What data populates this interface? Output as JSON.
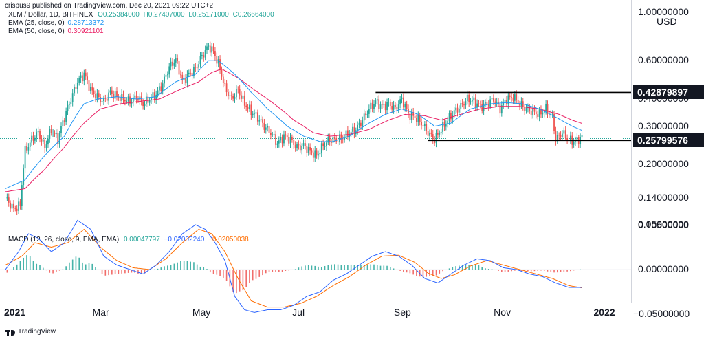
{
  "header": {
    "publisher": "crispus9 published on TradingView.com, Dec 20, 2021 09:22 UTC+2"
  },
  "legend": {
    "symbol": "XLM / Dollar, 1D, BITFINEX",
    "ohlc": {
      "o": "O0.25384000",
      "h": "H0.27407000",
      "l": "L0.25171000",
      "c": "C0.26664000"
    },
    "ema25": {
      "label": "EMA (25, close, 0)",
      "value": "0.28713372",
      "color": "#2196f3"
    },
    "ema50": {
      "label": "EMA (50, close, 0)",
      "value": "0.30921101",
      "color": "#e91e63"
    }
  },
  "macd_legend": {
    "label": "MACD (12, 26, close, 9, EMA, EMA)",
    "hist": "0.00047797",
    "macd": "−0.02002240",
    "signal": "−0.02050038"
  },
  "currency": "USD",
  "price_tags": [
    {
      "label": "0.42879897",
      "value": 0.42879897
    },
    {
      "label": "0.25799576",
      "value": 0.25799576
    }
  ],
  "footer": {
    "brand": "TradingView"
  },
  "colors": {
    "up": "#26a69a",
    "down": "#ef5350",
    "text": "#131722",
    "ema25": "#2196f3",
    "ema50": "#e91e63",
    "macd": "#2962ff",
    "signal": "#ff6d00"
  },
  "chart_data": {
    "type": "candlestick",
    "symbol": "XLM / Dollar",
    "interval": "1D",
    "log_scale": true,
    "grid": false,
    "x_ticks": [
      {
        "label": "2021",
        "t": 0
      },
      {
        "label": "Mar",
        "t": 59
      },
      {
        "label": "May",
        "t": 120
      },
      {
        "label": "Jul",
        "t": 181
      },
      {
        "label": "Sep",
        "t": 243
      },
      {
        "label": "Nov",
        "t": 304
      },
      {
        "label": "2022",
        "t": 365
      }
    ],
    "y_ticks": [
      {
        "label": "1.00000000",
        "value": 1.0
      },
      {
        "label": "0.60000000",
        "value": 0.6
      },
      {
        "label": "0.40000000",
        "value": 0.4
      },
      {
        "label": "0.30000000",
        "value": 0.3
      },
      {
        "label": "0.20000000",
        "value": 0.2
      },
      {
        "label": "0.14000000",
        "value": 0.14
      },
      {
        "label": "0.10500000",
        "value": 0.105
      }
    ],
    "macd_y_ticks": [
      {
        "label": "0.05000000",
        "value": 0.05
      },
      {
        "label": "0.00000000",
        "value": 0.0
      },
      {
        "label": "−0.05000000",
        "value": -0.05
      }
    ],
    "resistance": {
      "value": 0.42879897,
      "from": "2021-08-15",
      "to": "2021-12-31"
    },
    "support": {
      "value": 0.25799576,
      "from": "2021-09-16",
      "to": "2021-12-31"
    },
    "price_path": [
      [
        0,
        0.14
      ],
      [
        5,
        0.125
      ],
      [
        9,
        0.13
      ],
      [
        12,
        0.23
      ],
      [
        16,
        0.26
      ],
      [
        20,
        0.28
      ],
      [
        24,
        0.24
      ],
      [
        28,
        0.29
      ],
      [
        32,
        0.26
      ],
      [
        36,
        0.33
      ],
      [
        40,
        0.4
      ],
      [
        44,
        0.48
      ],
      [
        48,
        0.52
      ],
      [
        52,
        0.44
      ],
      [
        56,
        0.41
      ],
      [
        60,
        0.39
      ],
      [
        64,
        0.43
      ],
      [
        68,
        0.41
      ],
      [
        72,
        0.4
      ],
      [
        76,
        0.39
      ],
      [
        80,
        0.41
      ],
      [
        84,
        0.38
      ],
      [
        88,
        0.4
      ],
      [
        92,
        0.42
      ],
      [
        96,
        0.47
      ],
      [
        100,
        0.56
      ],
      [
        104,
        0.61
      ],
      [
        108,
        0.48
      ],
      [
        112,
        0.52
      ],
      [
        116,
        0.55
      ],
      [
        120,
        0.63
      ],
      [
        124,
        0.7
      ],
      [
        127,
        0.66
      ],
      [
        130,
        0.58
      ],
      [
        134,
        0.45
      ],
      [
        138,
        0.4
      ],
      [
        142,
        0.44
      ],
      [
        146,
        0.38
      ],
      [
        150,
        0.35
      ],
      [
        154,
        0.33
      ],
      [
        158,
        0.3
      ],
      [
        162,
        0.28
      ],
      [
        166,
        0.25
      ],
      [
        170,
        0.27
      ],
      [
        174,
        0.26
      ],
      [
        178,
        0.24
      ],
      [
        182,
        0.245
      ],
      [
        186,
        0.23
      ],
      [
        190,
        0.22
      ],
      [
        194,
        0.245
      ],
      [
        198,
        0.26
      ],
      [
        202,
        0.26
      ],
      [
        206,
        0.265
      ],
      [
        210,
        0.28
      ],
      [
        214,
        0.29
      ],
      [
        218,
        0.32
      ],
      [
        222,
        0.36
      ],
      [
        226,
        0.39
      ],
      [
        230,
        0.37
      ],
      [
        234,
        0.38
      ],
      [
        238,
        0.36
      ],
      [
        242,
        0.4
      ],
      [
        246,
        0.34
      ],
      [
        250,
        0.33
      ],
      [
        254,
        0.31
      ],
      [
        258,
        0.28
      ],
      [
        262,
        0.26
      ],
      [
        266,
        0.29
      ],
      [
        270,
        0.32
      ],
      [
        274,
        0.35
      ],
      [
        278,
        0.37
      ],
      [
        282,
        0.4
      ],
      [
        286,
        0.39
      ],
      [
        290,
        0.37
      ],
      [
        294,
        0.38
      ],
      [
        298,
        0.4
      ],
      [
        302,
        0.36
      ],
      [
        306,
        0.4
      ],
      [
        310,
        0.41
      ],
      [
        314,
        0.38
      ],
      [
        318,
        0.36
      ],
      [
        322,
        0.35
      ],
      [
        326,
        0.34
      ],
      [
        330,
        0.36
      ],
      [
        334,
        0.33
      ],
      [
        336,
        0.26
      ],
      [
        340,
        0.28
      ],
      [
        344,
        0.26
      ],
      [
        348,
        0.255
      ],
      [
        352,
        0.2666
      ]
    ],
    "ema25_path": [
      [
        0,
        0.155
      ],
      [
        12,
        0.17
      ],
      [
        24,
        0.22
      ],
      [
        36,
        0.27
      ],
      [
        48,
        0.38
      ],
      [
        56,
        0.4
      ],
      [
        68,
        0.41
      ],
      [
        80,
        0.4
      ],
      [
        92,
        0.41
      ],
      [
        104,
        0.48
      ],
      [
        116,
        0.52
      ],
      [
        124,
        0.6
      ],
      [
        130,
        0.6
      ],
      [
        140,
        0.52
      ],
      [
        150,
        0.43
      ],
      [
        160,
        0.36
      ],
      [
        172,
        0.3
      ],
      [
        182,
        0.27
      ],
      [
        192,
        0.255
      ],
      [
        200,
        0.255
      ],
      [
        210,
        0.27
      ],
      [
        222,
        0.31
      ],
      [
        232,
        0.34
      ],
      [
        242,
        0.36
      ],
      [
        252,
        0.34
      ],
      [
        262,
        0.3
      ],
      [
        272,
        0.31
      ],
      [
        284,
        0.36
      ],
      [
        296,
        0.38
      ],
      [
        306,
        0.385
      ],
      [
        316,
        0.38
      ],
      [
        326,
        0.36
      ],
      [
        336,
        0.33
      ],
      [
        346,
        0.3
      ],
      [
        352,
        0.287
      ]
    ],
    "ema50_path": [
      [
        0,
        0.15
      ],
      [
        12,
        0.155
      ],
      [
        24,
        0.19
      ],
      [
        36,
        0.24
      ],
      [
        48,
        0.31
      ],
      [
        58,
        0.36
      ],
      [
        70,
        0.38
      ],
      [
        82,
        0.39
      ],
      [
        94,
        0.4
      ],
      [
        106,
        0.44
      ],
      [
        118,
        0.48
      ],
      [
        126,
        0.53
      ],
      [
        132,
        0.55
      ],
      [
        142,
        0.5
      ],
      [
        152,
        0.44
      ],
      [
        164,
        0.38
      ],
      [
        176,
        0.32
      ],
      [
        188,
        0.28
      ],
      [
        198,
        0.27
      ],
      [
        210,
        0.275
      ],
      [
        222,
        0.29
      ],
      [
        234,
        0.32
      ],
      [
        244,
        0.34
      ],
      [
        256,
        0.335
      ],
      [
        266,
        0.32
      ],
      [
        278,
        0.34
      ],
      [
        290,
        0.36
      ],
      [
        302,
        0.37
      ],
      [
        314,
        0.37
      ],
      [
        326,
        0.36
      ],
      [
        338,
        0.34
      ],
      [
        346,
        0.32
      ],
      [
        352,
        0.309
      ]
    ],
    "macd_path": [
      [
        0,
        0.0
      ],
      [
        8,
        0.02
      ],
      [
        14,
        0.04
      ],
      [
        20,
        0.035
      ],
      [
        28,
        0.02
      ],
      [
        36,
        0.03
      ],
      [
        44,
        0.055
      ],
      [
        52,
        0.045
      ],
      [
        60,
        0.015
      ],
      [
        68,
        0.005
      ],
      [
        76,
        0.0
      ],
      [
        84,
        -0.005
      ],
      [
        92,
        0.005
      ],
      [
        100,
        0.02
      ],
      [
        108,
        0.04
      ],
      [
        116,
        0.05
      ],
      [
        122,
        0.045
      ],
      [
        128,
        0.03
      ],
      [
        134,
        0.01
      ],
      [
        140,
        -0.03
      ],
      [
        146,
        -0.045
      ],
      [
        152,
        -0.048
      ],
      [
        160,
        -0.045
      ],
      [
        168,
        -0.045
      ],
      [
        176,
        -0.04
      ],
      [
        184,
        -0.03
      ],
      [
        192,
        -0.025
      ],
      [
        200,
        -0.012
      ],
      [
        208,
        -0.005
      ],
      [
        216,
        0.005
      ],
      [
        224,
        0.015
      ],
      [
        232,
        0.02
      ],
      [
        240,
        0.015
      ],
      [
        248,
        0.005
      ],
      [
        256,
        -0.01
      ],
      [
        264,
        -0.015
      ],
      [
        272,
        -0.005
      ],
      [
        280,
        0.005
      ],
      [
        288,
        0.012
      ],
      [
        296,
        0.01
      ],
      [
        304,
        0.002
      ],
      [
        312,
        0.0
      ],
      [
        320,
        -0.005
      ],
      [
        328,
        -0.008
      ],
      [
        336,
        -0.015
      ],
      [
        344,
        -0.02
      ],
      [
        352,
        -0.02
      ]
    ],
    "signal_path": [
      [
        0,
        0.005
      ],
      [
        10,
        0.015
      ],
      [
        18,
        0.03
      ],
      [
        28,
        0.025
      ],
      [
        38,
        0.03
      ],
      [
        48,
        0.045
      ],
      [
        58,
        0.025
      ],
      [
        68,
        0.01
      ],
      [
        78,
        0.002
      ],
      [
        88,
        0.0
      ],
      [
        98,
        0.012
      ],
      [
        108,
        0.03
      ],
      [
        118,
        0.045
      ],
      [
        126,
        0.04
      ],
      [
        134,
        0.02
      ],
      [
        142,
        -0.01
      ],
      [
        150,
        -0.035
      ],
      [
        160,
        -0.042
      ],
      [
        170,
        -0.042
      ],
      [
        180,
        -0.038
      ],
      [
        190,
        -0.03
      ],
      [
        200,
        -0.018
      ],
      [
        210,
        -0.008
      ],
      [
        220,
        0.005
      ],
      [
        230,
        0.015
      ],
      [
        240,
        0.016
      ],
      [
        250,
        0.008
      ],
      [
        258,
        -0.004
      ],
      [
        266,
        -0.01
      ],
      [
        274,
        -0.006
      ],
      [
        284,
        0.004
      ],
      [
        294,
        0.01
      ],
      [
        304,
        0.005
      ],
      [
        314,
        0.0
      ],
      [
        324,
        -0.005
      ],
      [
        334,
        -0.01
      ],
      [
        344,
        -0.018
      ],
      [
        352,
        -0.0205
      ]
    ]
  }
}
